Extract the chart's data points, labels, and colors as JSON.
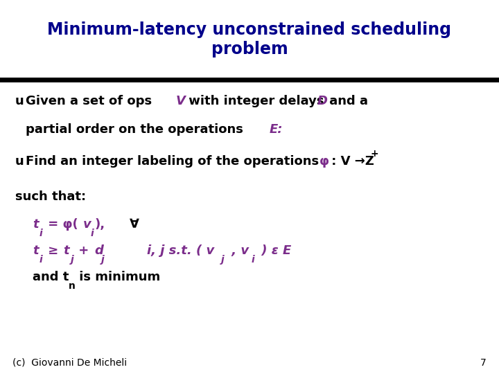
{
  "bg_color": "#ffffff",
  "title_text": "Minimum-latency unconstrained scheduling\nproblem",
  "title_color": "#00008B",
  "title_fontsize": 17,
  "line_color": "#000000",
  "body_color": "#000000",
  "purple_color": "#7B2D8B",
  "footer_text": "(c)  Giovanni De Micheli",
  "page_num": "7",
  "body_fontsize": 13,
  "footer_fontsize": 10
}
